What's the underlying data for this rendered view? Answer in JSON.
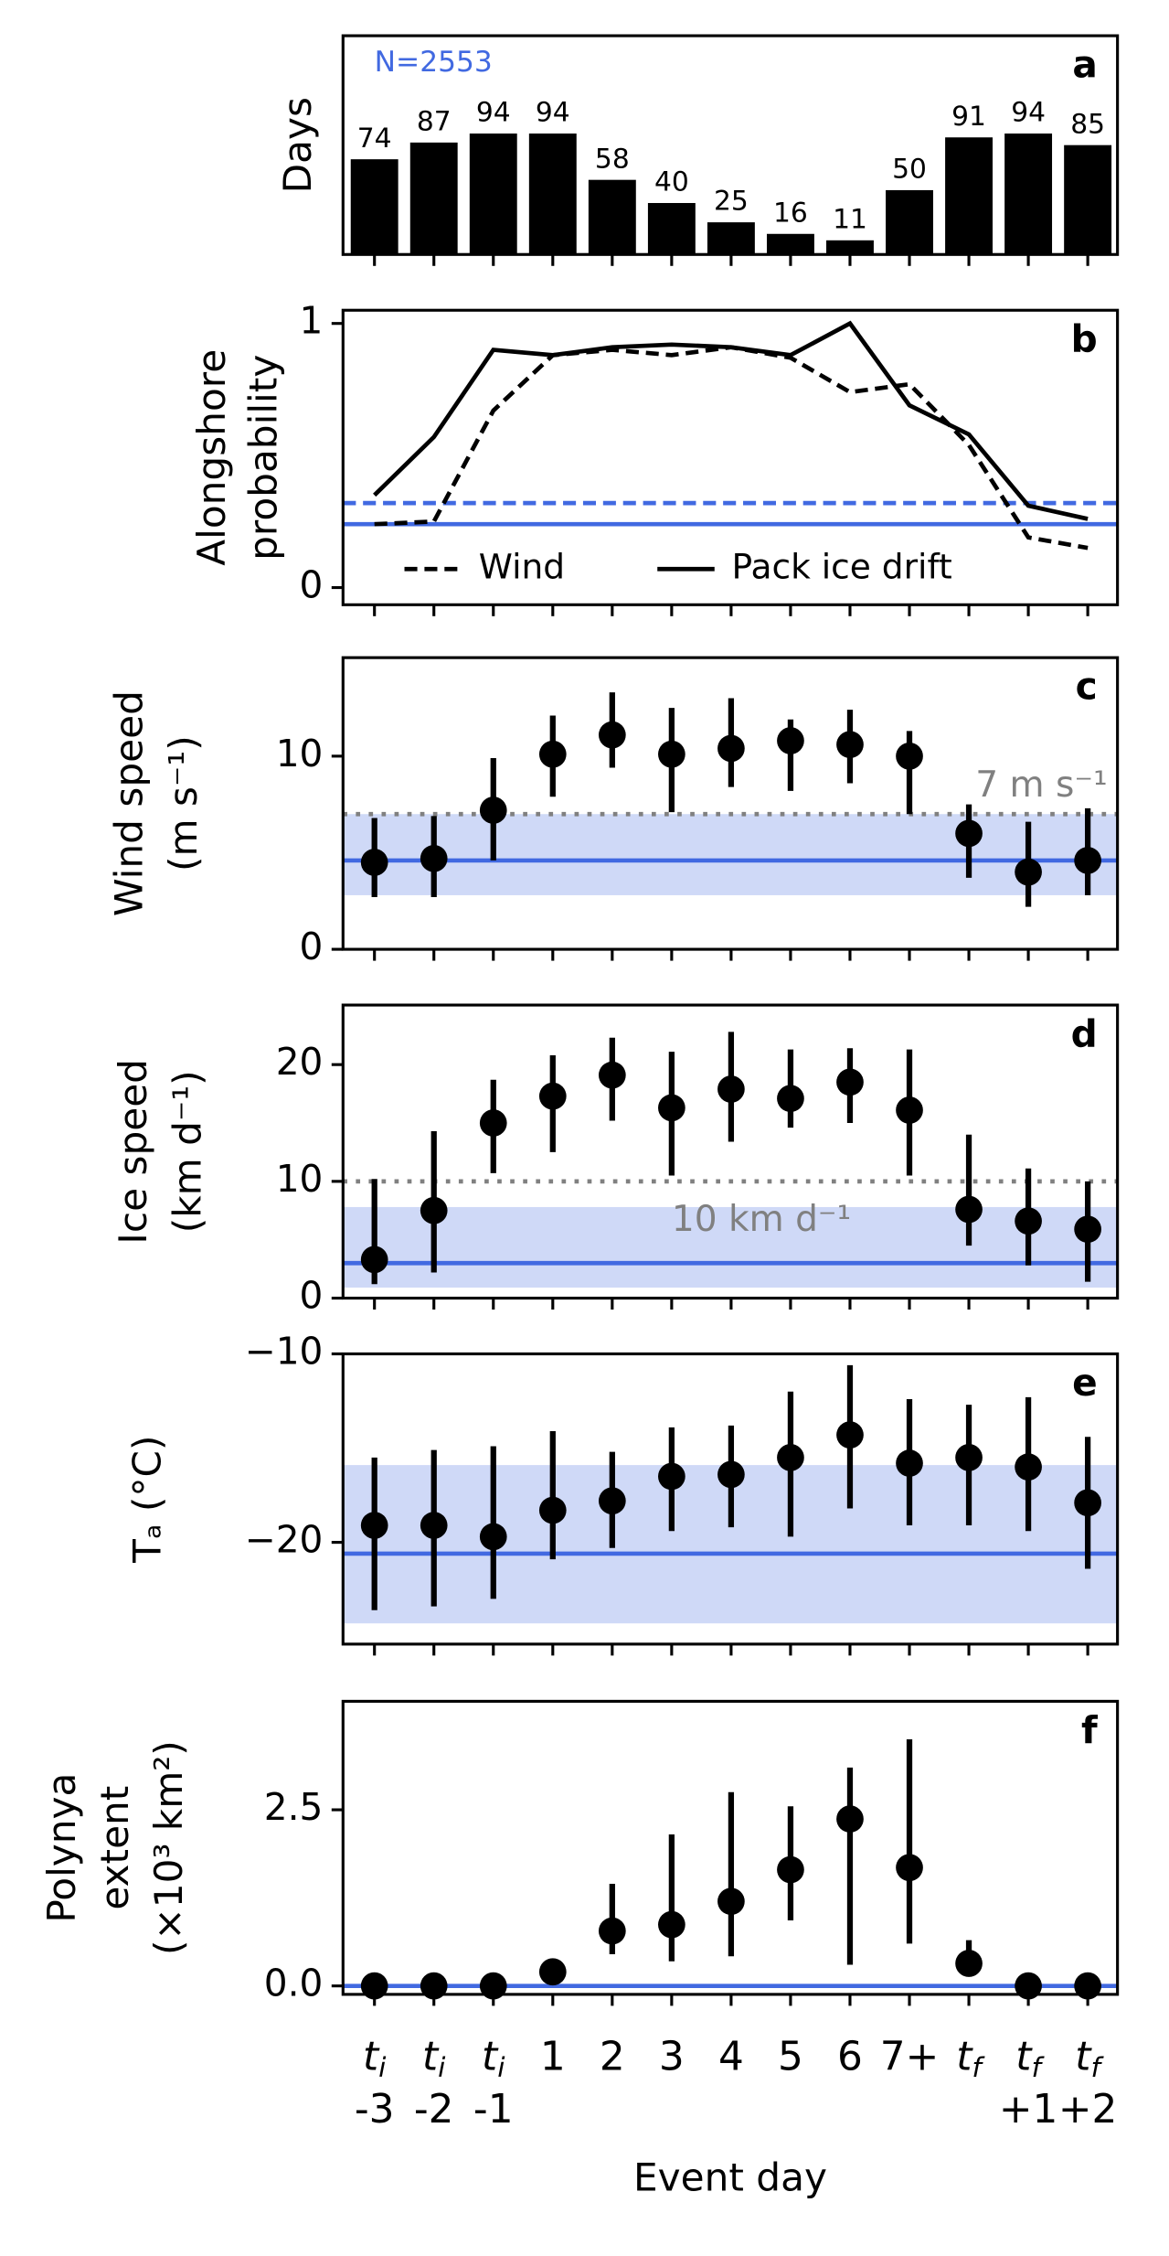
{
  "chart_data": [
    {
      "type": "bar",
      "panel_label": "a",
      "annotation": "N=2553",
      "ylabel": [
        "Days"
      ],
      "values": [
        74,
        87,
        94,
        94,
        58,
        40,
        25,
        16,
        11,
        50,
        91,
        94,
        85
      ],
      "color": "#000000",
      "ylim": [
        0,
        170
      ]
    },
    {
      "type": "line",
      "panel_label": "b",
      "ylabel": [
        "Alongshore",
        "probability"
      ],
      "series": [
        {
          "name": "Wind",
          "color": "#000000",
          "style": "dashed",
          "values": [
            0.24,
            0.25,
            0.67,
            0.88,
            0.9,
            0.88,
            0.91,
            0.87,
            0.74,
            0.77,
            0.54,
            0.19,
            0.15
          ]
        },
        {
          "name": "Pack ice drift",
          "color": "#000000",
          "style": "solid",
          "values": [
            0.35,
            0.57,
            0.9,
            0.88,
            0.91,
            0.92,
            0.91,
            0.88,
            1.0,
            0.69,
            0.58,
            0.31,
            0.26
          ]
        }
      ],
      "reference_lines": [
        {
          "value": 0.32,
          "color": "#4169e1",
          "style": "dashed"
        },
        {
          "value": 0.24,
          "color": "#4169e1",
          "style": "solid"
        }
      ],
      "ylim": [
        -0.065,
        1.05
      ],
      "yticks": [
        0,
        1
      ],
      "legend": "lower center"
    },
    {
      "type": "errorbar",
      "panel_label": "c",
      "ylabel": [
        "Wind speed",
        "(m s⁻¹)"
      ],
      "values": [
        4.5,
        4.7,
        7.2,
        10.1,
        11.1,
        10.1,
        10.4,
        10.8,
        10.6,
        10.0,
        6.0,
        4.0,
        4.6
      ],
      "lower": [
        2.7,
        2.7,
        4.6,
        7.9,
        9.4,
        7.1,
        8.4,
        8.2,
        8.6,
        7.0,
        3.7,
        2.2,
        2.8
      ],
      "upper": [
        6.8,
        6.9,
        9.9,
        12.1,
        13.3,
        12.5,
        13.0,
        11.9,
        12.4,
        11.3,
        7.5,
        6.6,
        7.3
      ],
      "color": "#000000",
      "reference_lines": [
        {
          "value": 4.6,
          "color": "#4169e1",
          "style": "solid"
        }
      ],
      "band": {
        "range": [
          2.8,
          7.0
        ],
        "color": "#cfd9f7"
      },
      "threshold": {
        "value": 7,
        "label": "7 m s⁻¹",
        "color": "#808080"
      },
      "ylim": [
        0,
        15.1
      ],
      "yticks": [
        0,
        10
      ]
    },
    {
      "type": "errorbar",
      "panel_label": "d",
      "ylabel": [
        "Ice speed",
        "(km d⁻¹)"
      ],
      "values": [
        3.3,
        7.5,
        15.0,
        17.3,
        19.1,
        16.3,
        17.9,
        17.1,
        18.5,
        16.1,
        7.6,
        6.6,
        5.9
      ],
      "lower": [
        1.2,
        2.2,
        10.7,
        12.5,
        15.2,
        10.5,
        13.4,
        14.6,
        15.0,
        10.5,
        4.5,
        2.8,
        1.4
      ],
      "upper": [
        10.2,
        14.3,
        18.7,
        20.8,
        22.3,
        21.1,
        22.8,
        21.3,
        21.4,
        21.3,
        14.0,
        11.1,
        10.0
      ],
      "color": "#000000",
      "reference_lines": [
        {
          "value": 3.0,
          "color": "#4169e1",
          "style": "solid"
        }
      ],
      "band": {
        "range": [
          0.9,
          7.8
        ],
        "color": "#cfd9f7"
      },
      "threshold": {
        "value": 10,
        "label": "10 km d⁻¹",
        "color": "#808080"
      },
      "ylim": [
        0,
        25.1
      ],
      "yticks": [
        0,
        10,
        20
      ]
    },
    {
      "type": "errorbar",
      "panel_label": "e",
      "ylabel": [
        "Tₐ (°C)"
      ],
      "values": [
        -19.1,
        -19.1,
        -19.7,
        -18.3,
        -17.8,
        -16.5,
        -16.4,
        -15.5,
        -14.3,
        -15.8,
        -15.5,
        -16.0,
        -17.9
      ],
      "lower": [
        -23.6,
        -23.4,
        -23.0,
        -20.9,
        -20.3,
        -19.4,
        -19.2,
        -19.7,
        -18.2,
        -19.1,
        -19.1,
        -19.4,
        -21.4
      ],
      "upper": [
        -15.5,
        -15.1,
        -14.9,
        -14.1,
        -15.2,
        -13.9,
        -13.8,
        -12.0,
        -10.6,
        -12.4,
        -12.7,
        -12.3,
        -14.4
      ],
      "color": "#000000",
      "reference_lines": [
        {
          "value": -20.6,
          "color": "#4169e1",
          "style": "solid"
        }
      ],
      "band": {
        "range": [
          -24.3,
          -15.9
        ],
        "color": "#cfd9f7"
      },
      "ylim": [
        -25.4,
        -10
      ],
      "yticks": [
        {
          "value": -10,
          "label": "−10"
        },
        {
          "value": -20,
          "label": "−20"
        }
      ]
    },
    {
      "type": "errorbar",
      "panel_label": "f",
      "ylabel": [
        "Polynya",
        "extent",
        "(×10³ km²)"
      ],
      "xlabel": "Event day",
      "categories": [
        {
          "symbol": "t",
          "sub": "i",
          "offset": "-3"
        },
        {
          "symbol": "t",
          "sub": "i",
          "offset": "-2"
        },
        {
          "symbol": "t",
          "sub": "i",
          "offset": "-1"
        },
        "1",
        "2",
        "3",
        "4",
        "5",
        "6",
        "7+",
        {
          "symbol": "t",
          "sub": "f"
        },
        {
          "symbol": "t",
          "sub": "f",
          "offset": "+1"
        },
        {
          "symbol": "t",
          "sub": "f",
          "offset": "+2"
        }
      ],
      "values": [
        0,
        0,
        0,
        0.2,
        0.78,
        0.87,
        1.2,
        1.65,
        2.37,
        1.68,
        0.32,
        0,
        0
      ],
      "lower": [
        0,
        0,
        0,
        0.2,
        0.45,
        0.35,
        0.42,
        0.93,
        0.3,
        0.6,
        0.18,
        0,
        0
      ],
      "upper": [
        0,
        0,
        0,
        0.2,
        1.45,
        2.15,
        2.75,
        2.55,
        3.1,
        3.5,
        0.65,
        0,
        0
      ],
      "color": "#000000",
      "reference_lines": [
        {
          "value": 0,
          "color": "#4169e1",
          "style": "solid"
        }
      ],
      "ylim": [
        -0.12,
        4.04
      ],
      "yticks": [
        {
          "value": 0,
          "label": "0.0"
        },
        2.5
      ]
    }
  ]
}
